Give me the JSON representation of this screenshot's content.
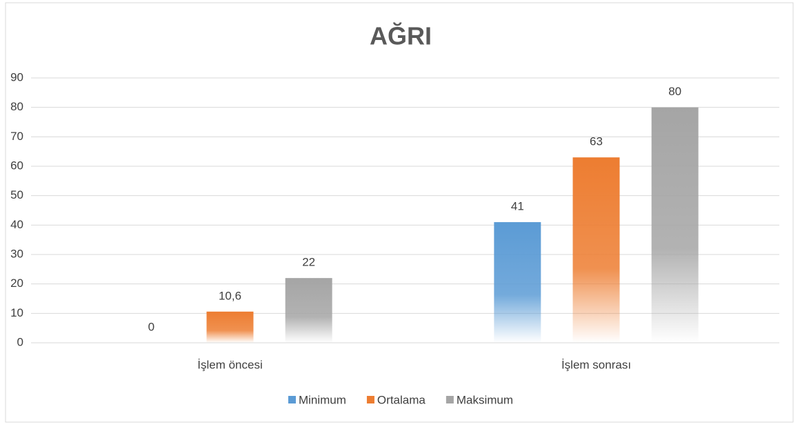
{
  "chart_data": {
    "type": "bar",
    "title": "AĞRI",
    "categories": [
      "İşlem öncesi",
      "İşlem sonrası"
    ],
    "series": [
      {
        "name": "Minimum",
        "color": "#5b9bd5",
        "values": [
          0,
          41
        ]
      },
      {
        "name": "Ortalama",
        "color": "#ed7d31",
        "values": [
          10.6,
          63
        ],
        "value_labels": [
          "10,6",
          "63"
        ]
      },
      {
        "name": "Maksimum",
        "color": "#a5a5a5",
        "values": [
          22,
          80
        ]
      }
    ],
    "ylim": [
      0,
      90
    ],
    "yticks": [
      0,
      10,
      20,
      30,
      40,
      50,
      60,
      70,
      80,
      90
    ],
    "grid": true,
    "legend": "bottom"
  }
}
